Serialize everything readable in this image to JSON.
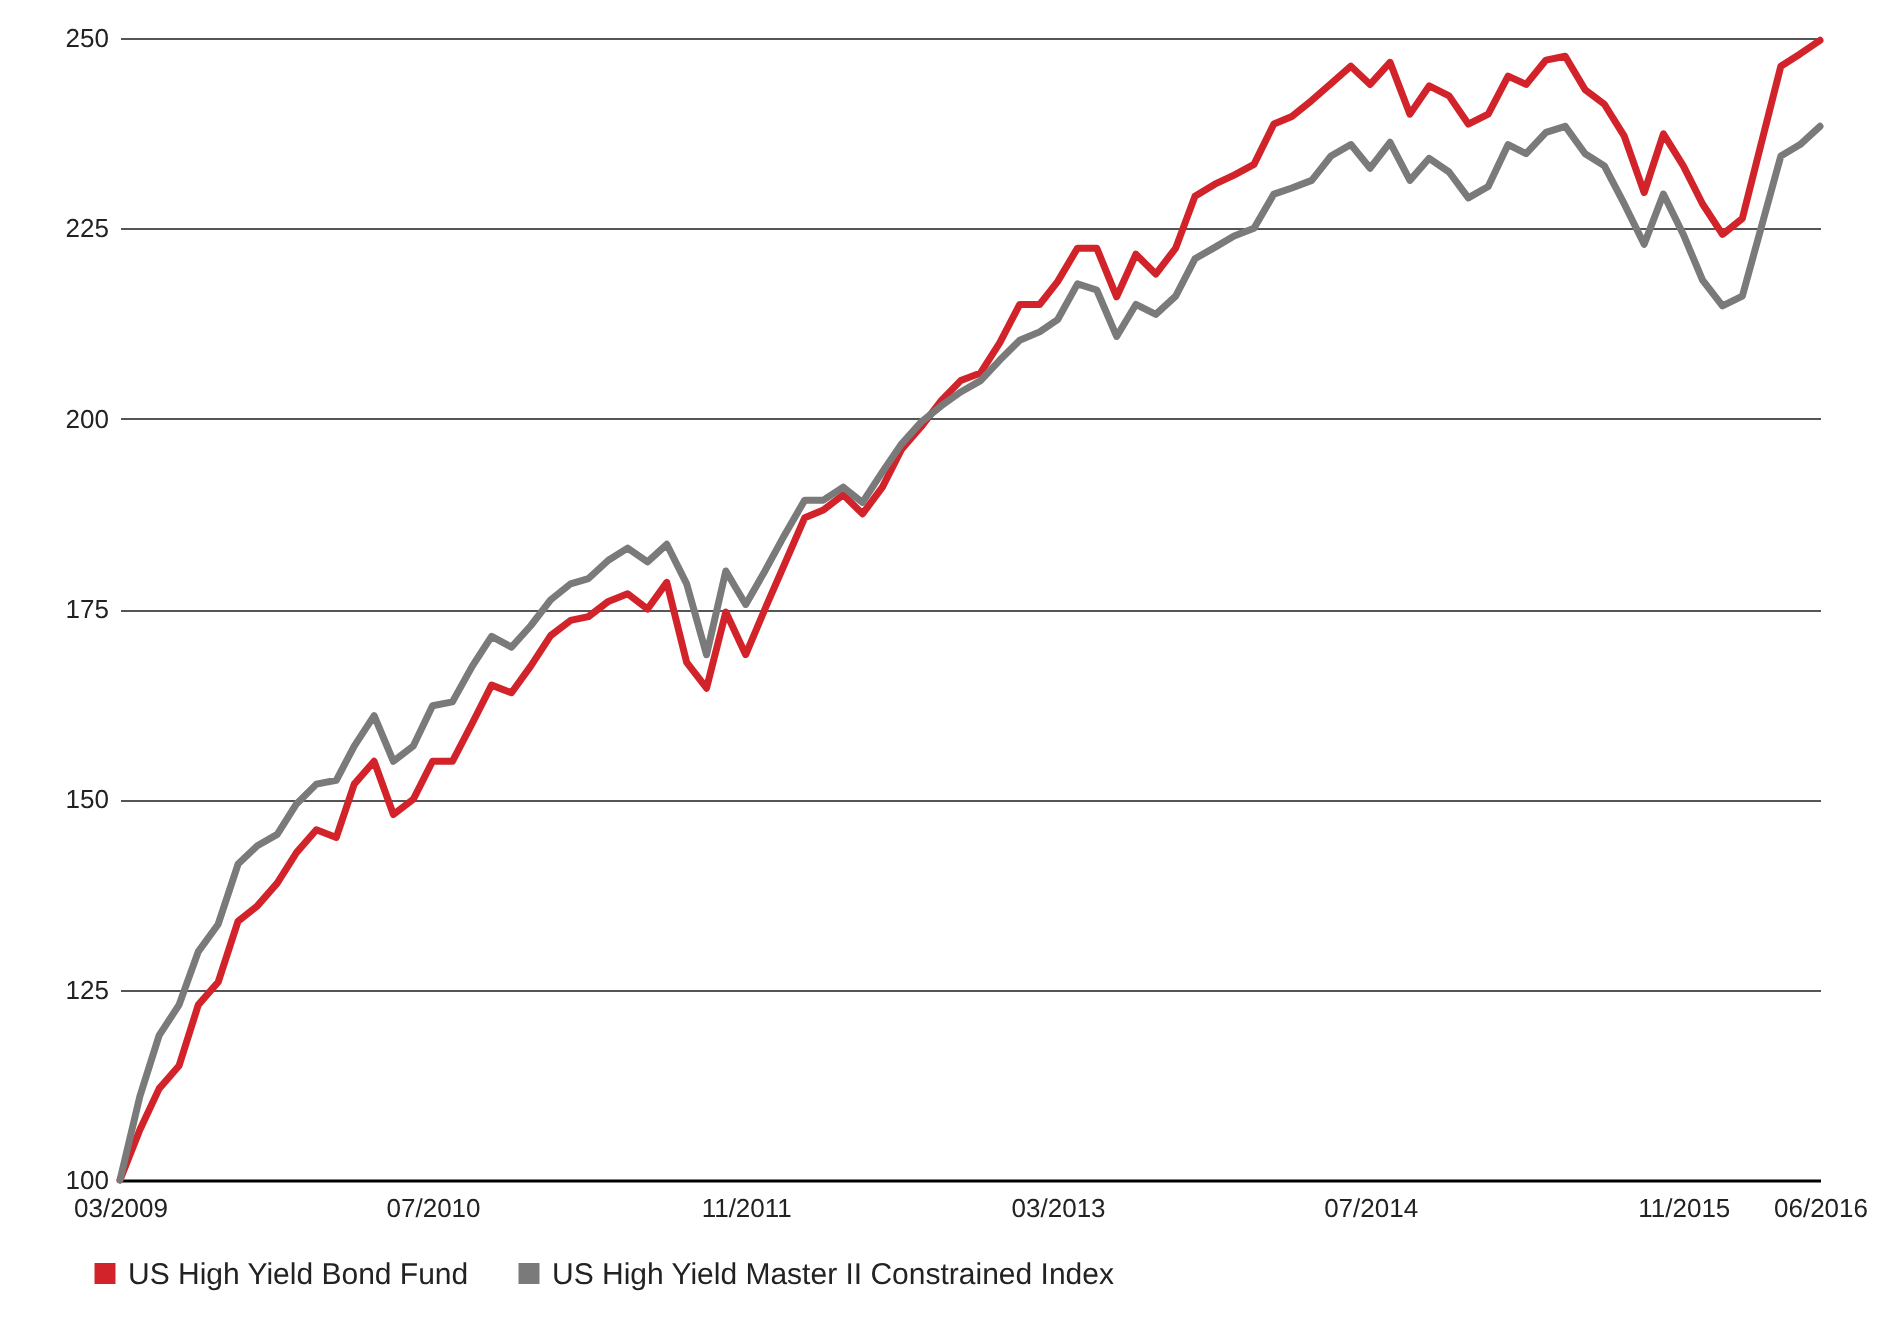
{
  "chart_data": {
    "type": "line",
    "x": [
      "2009-03",
      "2009-04",
      "2009-05",
      "2009-06",
      "2009-07",
      "2009-08",
      "2009-09",
      "2009-10",
      "2009-11",
      "2009-12",
      "2010-01",
      "2010-02",
      "2010-03",
      "2010-04",
      "2010-05",
      "2010-06",
      "2010-07",
      "2010-08",
      "2010-09",
      "2010-10",
      "2010-11",
      "2010-12",
      "2011-01",
      "2011-02",
      "2011-03",
      "2011-04",
      "2011-05",
      "2011-06",
      "2011-07",
      "2011-08",
      "2011-09",
      "2011-10",
      "2011-11",
      "2011-12",
      "2012-01",
      "2012-02",
      "2012-03",
      "2012-04",
      "2012-05",
      "2012-06",
      "2012-07",
      "2012-08",
      "2012-09",
      "2012-10",
      "2012-11",
      "2012-12",
      "2013-01",
      "2013-02",
      "2013-03",
      "2013-04",
      "2013-05",
      "2013-06",
      "2013-07",
      "2013-08",
      "2013-09",
      "2013-10",
      "2013-11",
      "2013-12",
      "2014-01",
      "2014-02",
      "2014-03",
      "2014-04",
      "2014-05",
      "2014-06",
      "2014-07",
      "2014-08",
      "2014-09",
      "2014-10",
      "2014-11",
      "2014-12",
      "2015-01",
      "2015-02",
      "2015-03",
      "2015-04",
      "2015-05",
      "2015-06",
      "2015-07",
      "2015-08",
      "2015-09",
      "2015-10",
      "2015-11",
      "2015-12",
      "2016-01",
      "2016-02",
      "2016-03",
      "2016-04",
      "2016-05",
      "2016-06"
    ],
    "series": [
      {
        "name": "US High Yield Bond Fund",
        "color": "#d2232a",
        "values": [
          100,
          106.6,
          112,
          115,
          123,
          126,
          134,
          136,
          139,
          143,
          146,
          145,
          152,
          155,
          148,
          150,
          155,
          155,
          160,
          165,
          164,
          167.5,
          171.5,
          173.5,
          174,
          176,
          177,
          175,
          178.5,
          168,
          164.6,
          174.6,
          169,
          175,
          181,
          187,
          188,
          190,
          187.5,
          191,
          196,
          199,
          202.4,
          205,
          206,
          210,
          215,
          215,
          218,
          222.4,
          222.4,
          216,
          221.6,
          219,
          222.4,
          229.2,
          230.8,
          232,
          233.4,
          238.7,
          239.7,
          241.8,
          244,
          246.3,
          243.9,
          246.8,
          240,
          243.7,
          242.4,
          238.7,
          240,
          245,
          243.9,
          247.1,
          247.6,
          243.2,
          241.3,
          237.1,
          229.7,
          237.4,
          233.2,
          228.2,
          224.2,
          226.3,
          236,
          246.3,
          247.9,
          249.7
        ]
      },
      {
        "name": "US High Yield Master II Constrained Index",
        "color": "#7a7a7a",
        "values": [
          100,
          111,
          119,
          123,
          130,
          133.6,
          141.5,
          143.9,
          145.4,
          149.4,
          152,
          152.5,
          157,
          161,
          155,
          157,
          162.3,
          162.8,
          167.5,
          171.4,
          170,
          172.8,
          176.2,
          178.3,
          179,
          181.4,
          183,
          181.2,
          183.5,
          178.3,
          169,
          180,
          175.6,
          180,
          184.8,
          189.3,
          189.3,
          191,
          189,
          193,
          196.7,
          199.6,
          201.7,
          203.5,
          205,
          207.7,
          210.3,
          211.4,
          213,
          217.7,
          216.9,
          210.8,
          215,
          213.7,
          216.1,
          221,
          222.5,
          224,
          225,
          229.5,
          230.3,
          231.3,
          234.5,
          236,
          232.9,
          236.3,
          231.3,
          234.2,
          232.4,
          229,
          230.5,
          236,
          234.8,
          237.6,
          238.4,
          234.8,
          233.2,
          228.2,
          222.9,
          229.5,
          224.2,
          218.2,
          214.8,
          216.1,
          225,
          234.5,
          236,
          238.4
        ]
      }
    ],
    "xlim": [
      "2009-03",
      "2016-06"
    ],
    "xticks": [
      {
        "value": "2009-03",
        "label": "03/2009"
      },
      {
        "value": "2010-07",
        "label": "07/2010"
      },
      {
        "value": "2011-11",
        "label": "11/2011"
      },
      {
        "value": "2013-03",
        "label": "03/2013"
      },
      {
        "value": "2014-07",
        "label": "07/2014"
      },
      {
        "value": "2015-11",
        "label": "11/2015"
      },
      {
        "value": "2016-06",
        "label": "06/2016"
      }
    ],
    "ylim": [
      100,
      250
    ],
    "yticks": [
      100,
      125,
      150,
      175,
      200,
      225,
      250
    ],
    "grid": "y",
    "legend": "bottom left",
    "line_style": "solid"
  }
}
